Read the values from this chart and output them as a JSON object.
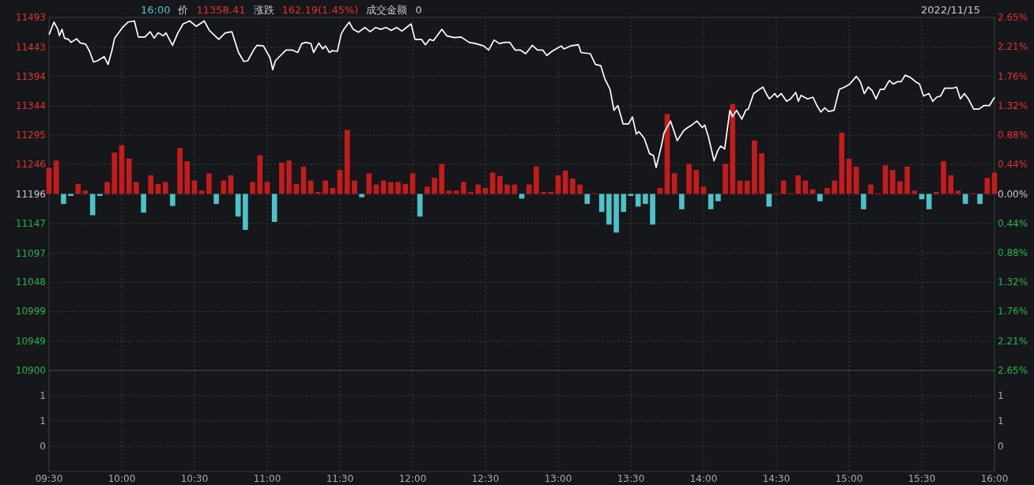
{
  "chart_data": [
    {
      "type": "line",
      "tick_labels": "y",
      "grid": true,
      "annotations": [
        "16:00",
        "价",
        "11358.41",
        "涨跌",
        "162.19(1.45%)",
        "成交金额",
        "0",
        "2022/11/15"
      ],
      "xlim": [
        9.5,
        16
      ],
      "xticks": [
        {
          "value": 10,
          "label": null
        },
        {
          "value": 10.5,
          "label": null
        },
        {
          "value": 11,
          "label": null
        },
        {
          "value": 11.5,
          "label": null
        },
        {
          "value": 12,
          "label": null
        },
        {
          "value": 12.5,
          "label": null
        },
        {
          "value": 13,
          "label": null
        },
        {
          "value": 13.5,
          "label": null
        },
        {
          "value": 14,
          "label": null
        },
        {
          "value": 14.5,
          "label": null
        },
        {
          "value": 15,
          "label": null
        },
        {
          "value": 15.5,
          "label": null
        }
      ],
      "ylim": [
        10900,
        11493
      ],
      "yticks": [
        11493,
        11443,
        11394,
        11344,
        11295,
        11246,
        11196,
        11147,
        11097,
        11048,
        10999,
        10949,
        10900
      ],
      "y2lim": [
        -2.65,
        2.65
      ],
      "y2ticks": [
        {
          "value": 2.65,
          "label": "2.65%"
        },
        {
          "value": 2.21,
          "label": "2.21%"
        },
        {
          "value": 1.76,
          "label": "1.76%"
        },
        {
          "value": 1.32,
          "label": "1.32%"
        },
        {
          "value": 0.88,
          "label": "0.88%"
        },
        {
          "value": 0.44,
          "label": "0.44%"
        },
        {
          "value": 0,
          "label": "0.00%"
        },
        {
          "value": -0.44,
          "label": "0.44%"
        },
        {
          "value": -0.88,
          "label": "0.88%"
        },
        {
          "value": -1.32,
          "label": "1.32%"
        },
        {
          "value": -1.76,
          "label": "1.76%"
        },
        {
          "value": -2.21,
          "label": "2.21%"
        },
        {
          "value": -2.65,
          "label": "2.65%"
        }
      ],
      "series": [
        {
          "type": "line",
          "color": "#ffffff",
          "x": [
            9.502,
            9.534,
            9.561,
            9.571,
            9.589,
            9.607,
            9.634,
            9.652,
            9.689,
            9.716,
            9.752,
            9.779,
            9.806,
            9.833,
            9.879,
            9.906,
            9.933,
            9.951,
            10.005,
            10.042,
            10.087,
            10.114,
            10.159,
            10.196,
            10.223,
            10.25,
            10.286,
            10.304,
            10.349,
            10.386,
            10.422,
            10.467,
            10.513,
            10.567,
            10.603,
            10.667,
            10.712,
            10.757,
            10.803,
            10.839,
            10.866,
            10.911,
            10.929,
            10.974,
            11.02,
            11.038,
            11.056,
            11.092,
            11.129,
            11.174,
            11.21,
            11.238,
            11.265,
            11.301,
            11.319,
            11.355,
            11.382,
            11.401,
            11.428,
            11.446,
            11.482,
            11.509,
            11.527,
            11.564,
            11.591,
            11.627,
            11.672,
            11.708,
            11.745,
            11.781,
            11.817,
            11.853,
            11.89,
            11.926,
            11.989,
            12.016,
            12.061,
            12.088,
            12.116,
            12.143,
            12.201,
            12.234,
            12.288,
            12.333,
            12.388,
            12.433,
            12.488,
            12.523,
            12.56,
            12.596,
            12.632,
            12.668,
            12.705,
            12.741,
            12.777,
            12.822,
            12.859,
            12.895,
            12.922,
            12.958,
            12.985,
            13.022,
            13.04,
            13.085,
            13.14,
            13.158,
            13.221,
            13.257,
            13.293,
            13.321,
            13.357,
            13.384,
            13.411,
            13.447,
            13.484,
            13.511,
            13.538,
            13.556,
            13.592,
            13.629,
            13.656,
            13.674,
            13.71,
            13.728,
            13.773,
            13.819,
            13.864,
            13.891,
            13.918,
            13.955,
            13.991,
            14.009,
            14.036,
            14.072,
            14.099,
            14.118,
            14.145,
            14.181,
            14.199,
            14.227,
            14.263,
            14.29,
            14.308,
            14.344,
            14.371,
            14.408,
            14.435,
            14.453,
            14.489,
            14.507,
            14.534,
            14.571,
            14.598,
            14.634,
            14.652,
            14.67,
            14.716,
            14.752,
            14.779,
            14.806,
            14.833,
            14.86,
            14.897,
            14.933,
            14.969,
            15.005,
            15.051,
            15.078,
            15.105,
            15.132,
            15.159,
            15.186,
            15.214,
            15.241,
            15.277,
            15.304,
            15.332,
            15.359,
            15.386,
            15.422,
            15.458,
            15.485,
            15.512,
            15.549,
            15.576,
            15.603,
            15.63,
            15.658,
            15.712,
            15.739,
            15.766,
            15.793,
            15.821,
            15.857,
            15.893,
            15.929,
            15.966,
            15.993,
            16
          ],
          "values": [
            11465,
            11485,
            11473,
            11462,
            11473,
            11458,
            11456,
            11451,
            11457,
            11450,
            11448,
            11436,
            11418,
            11420,
            11427,
            11414,
            11438,
            11458,
            11476,
            11485,
            11487,
            11460,
            11460,
            11469,
            11458,
            11467,
            11462,
            11467,
            11446,
            11467,
            11482,
            11487,
            11478,
            11487,
            11471,
            11456,
            11467,
            11469,
            11434,
            11419,
            11420,
            11440,
            11446,
            11445,
            11425,
            11405,
            11420,
            11429,
            11438,
            11438,
            11434,
            11449,
            11451,
            11449,
            11434,
            11450,
            11440,
            11445,
            11434,
            11437,
            11436,
            11465,
            11473,
            11485,
            11473,
            11468,
            11476,
            11469,
            11476,
            11473,
            11476,
            11471,
            11476,
            11470,
            11482,
            11456,
            11456,
            11447,
            11456,
            11454,
            11473,
            11462,
            11459,
            11460,
            11451,
            11449,
            11445,
            11438,
            11455,
            11449,
            11451,
            11451,
            11438,
            11438,
            11432,
            11446,
            11438,
            11438,
            11429,
            11436,
            11440,
            11445,
            11440,
            11445,
            11447,
            11434,
            11432,
            11414,
            11412,
            11390,
            11372,
            11337,
            11345,
            11314,
            11314,
            11326,
            11297,
            11301,
            11290,
            11264,
            11261,
            11241,
            11277,
            11299,
            11319,
            11286,
            11303,
            11308,
            11312,
            11319,
            11308,
            11312,
            11290,
            11252,
            11270,
            11277,
            11272,
            11337,
            11326,
            11337,
            11322,
            11337,
            11339,
            11365,
            11370,
            11376,
            11363,
            11356,
            11365,
            11359,
            11365,
            11352,
            11356,
            11367,
            11352,
            11362,
            11356,
            11359,
            11345,
            11334,
            11341,
            11335,
            11337,
            11372,
            11376,
            11381,
            11394,
            11385,
            11365,
            11376,
            11370,
            11356,
            11372,
            11372,
            11387,
            11381,
            11385,
            11385,
            11396,
            11392,
            11385,
            11381,
            11361,
            11365,
            11352,
            11359,
            11361,
            11374,
            11374,
            11376,
            11356,
            11365,
            11356,
            11339,
            11339,
            11345,
            11345,
            11356,
            11358
          ]
        },
        {
          "type": "bar",
          "axis": "y2",
          "x": [
            9.5,
            9.55,
            9.6,
            9.65,
            9.7,
            9.75,
            9.8,
            9.85,
            9.9,
            9.95,
            10,
            10.05,
            10.1,
            10.15,
            10.2,
            10.25,
            10.3,
            10.35,
            10.4,
            10.45,
            10.5,
            10.55,
            10.6,
            10.65,
            10.7,
            10.75,
            10.8,
            10.85,
            10.9,
            10.95,
            11,
            11.05,
            11.1,
            11.15,
            11.2,
            11.25,
            11.3,
            11.35,
            11.4,
            11.45,
            11.5,
            11.55,
            11.6,
            11.65,
            11.7,
            11.75,
            11.8,
            11.85,
            11.9,
            11.95,
            12,
            12.05,
            12.1,
            12.15,
            12.2,
            12.25,
            12.3,
            12.35,
            12.4,
            12.45,
            12.5,
            12.55,
            12.6,
            12.65,
            12.7,
            12.75,
            12.8,
            12.85,
            12.9,
            12.95,
            13,
            13.05,
            13.1,
            13.15,
            13.2,
            13.25,
            13.3,
            13.35,
            13.4,
            13.45,
            13.5,
            13.55,
            13.6,
            13.65,
            13.7,
            13.75,
            13.8,
            13.85,
            13.9,
            13.95,
            14,
            14.05,
            14.1,
            14.15,
            14.2,
            14.25,
            14.3,
            14.35,
            14.4,
            14.45,
            14.5,
            14.55,
            14.6,
            14.65,
            14.7,
            14.75,
            14.8,
            14.85,
            14.9,
            14.95,
            15,
            15.05,
            15.1,
            15.15,
            15.2,
            15.25,
            15.3,
            15.35,
            15.4,
            15.45,
            15.5,
            15.55,
            15.6,
            15.65,
            15.7,
            15.75,
            15.8,
            15.85,
            15.9,
            15.95,
            16
          ],
          "values": [
            0.39,
            0.5,
            -0.15,
            -0.03,
            0.15,
            0.05,
            -0.32,
            -0.03,
            0.18,
            0.62,
            0.73,
            0.53,
            0.18,
            -0.28,
            0.28,
            0.15,
            0.18,
            -0.18,
            0.69,
            0.49,
            0.2,
            0.05,
            0.31,
            -0.15,
            0.2,
            0.28,
            -0.34,
            -0.54,
            0.18,
            0.58,
            0.18,
            -0.42,
            0.47,
            0.5,
            0.15,
            0.41,
            0.2,
            0.03,
            0.2,
            0.09,
            0.36,
            0.96,
            0.2,
            -0.05,
            0.31,
            0.14,
            0.2,
            0.18,
            0.18,
            0.15,
            0.31,
            -0.34,
            0.11,
            0.24,
            0.45,
            0.05,
            0.05,
            0.18,
            0.03,
            0.14,
            0.09,
            0.32,
            0.27,
            0.14,
            0.14,
            -0.07,
            0.14,
            0.41,
            0.03,
            0.03,
            0.28,
            0.35,
            0.23,
            0.14,
            -0.15,
            0.01,
            -0.27,
            -0.46,
            -0.58,
            -0.27,
            -0.03,
            -0.19,
            -0.15,
            -0.46,
            0.09,
            1.2,
            0.31,
            -0.23,
            0.45,
            0.36,
            0.11,
            -0.23,
            -0.11,
            0.45,
            1.35,
            0.2,
            0.2,
            0.8,
            0.61,
            -0.19,
            0.01,
            0.2,
            0.01,
            0.28,
            0.2,
            0.07,
            -0.11,
            0.09,
            0.2,
            0.92,
            0.53,
            0.41,
            -0.23,
            0.14,
            0.01,
            0.43,
            0.36,
            0.19,
            0.41,
            0.05,
            -0.08,
            -0.23,
            0.03,
            0.49,
            0.28,
            0.05,
            -0.15,
            0.01,
            -0.15,
            0.24,
            0.32
          ],
          "colors": [
            "#c41c1c",
            "#c41c1c",
            "#4cc3c8",
            "#4cc3c8",
            "#c41c1c",
            "#c41c1c",
            "#4cc3c8",
            "#4cc3c8",
            "#c41c1c",
            "#c41c1c",
            "#c41c1c",
            "#c41c1c",
            "#c41c1c",
            "#4cc3c8",
            "#c41c1c",
            "#c41c1c",
            "#c41c1c",
            "#4cc3c8",
            "#c41c1c",
            "#c41c1c",
            "#c41c1c",
            "#c41c1c",
            "#c41c1c",
            "#4cc3c8",
            "#c41c1c",
            "#c41c1c",
            "#4cc3c8",
            "#4cc3c8",
            "#c41c1c",
            "#c41c1c",
            "#c41c1c",
            "#4cc3c8",
            "#c41c1c",
            "#c41c1c",
            "#c41c1c",
            "#c41c1c",
            "#c41c1c",
            "#c41c1c",
            "#c41c1c",
            "#c41c1c",
            "#c41c1c",
            "#c41c1c",
            "#c41c1c",
            "#4cc3c8",
            "#c41c1c",
            "#c41c1c",
            "#c41c1c",
            "#c41c1c",
            "#c41c1c",
            "#c41c1c",
            "#c41c1c",
            "#4cc3c8",
            "#c41c1c",
            "#c41c1c",
            "#c41c1c",
            "#c41c1c",
            "#c41c1c",
            "#c41c1c",
            "#c41c1c",
            "#c41c1c",
            "#c41c1c",
            "#c41c1c",
            "#c41c1c",
            "#c41c1c",
            "#c41c1c",
            "#4cc3c8",
            "#c41c1c",
            "#c41c1c",
            "#c41c1c",
            "#c41c1c",
            "#c41c1c",
            "#c41c1c",
            "#c41c1c",
            "#c41c1c",
            "#4cc3c8",
            "#c41c1c",
            "#4cc3c8",
            "#4cc3c8",
            "#4cc3c8",
            "#4cc3c8",
            "#4cc3c8",
            "#4cc3c8",
            "#4cc3c8",
            "#4cc3c8",
            "#c41c1c",
            "#c41c1c",
            "#c41c1c",
            "#4cc3c8",
            "#c41c1c",
            "#c41c1c",
            "#c41c1c",
            "#4cc3c8",
            "#4cc3c8",
            "#c41c1c",
            "#c41c1c",
            "#c41c1c",
            "#c41c1c",
            "#c41c1c",
            "#c41c1c",
            "#4cc3c8",
            "#c41c1c",
            "#c41c1c",
            "#c41c1c",
            "#c41c1c",
            "#c41c1c",
            "#c41c1c",
            "#4cc3c8",
            "#c41c1c",
            "#c41c1c",
            "#c41c1c",
            "#c41c1c",
            "#c41c1c",
            "#4cc3c8",
            "#c41c1c",
            "#c41c1c",
            "#c41c1c",
            "#c41c1c",
            "#c41c1c",
            "#c41c1c",
            "#c41c1c",
            "#4cc3c8",
            "#4cc3c8",
            "#c41c1c",
            "#c41c1c",
            "#c41c1c",
            "#c41c1c",
            "#4cc3c8",
            "#c41c1c",
            "#4cc3c8",
            "#c41c1c",
            "#c41c1c"
          ]
        }
      ]
    },
    {
      "type": "bar",
      "grid": true,
      "xlim": [
        9.5,
        16
      ],
      "xticks": [
        {
          "value": 9.5,
          "label": "09:30"
        },
        {
          "value": 10,
          "label": "10:00"
        },
        {
          "value": 10.5,
          "label": "10:30"
        },
        {
          "value": 11,
          "label": "11:00"
        },
        {
          "value": 11.5,
          "label": "11:30"
        },
        {
          "value": 12,
          "label": "12:00"
        },
        {
          "value": 12.5,
          "label": "12:30"
        },
        {
          "value": 13,
          "label": "13:00"
        },
        {
          "value": 13.5,
          "label": "13:30"
        },
        {
          "value": 14,
          "label": "14:00"
        },
        {
          "value": 14.5,
          "label": "14:30"
        },
        {
          "value": 15,
          "label": "15:00"
        },
        {
          "value": 15.5,
          "label": "15:30"
        },
        {
          "value": 16,
          "label": "16:00"
        }
      ],
      "ylim": [
        -0.6,
        1.8
      ],
      "yticks": [
        {
          "value": 1.2,
          "label": "1"
        },
        {
          "value": 0.6,
          "label": "1"
        },
        0
      ],
      "y2lim": [
        -0.6,
        1.8
      ],
      "y2ticks": [
        {
          "value": 1.2,
          "label": "1"
        },
        {
          "value": 0.6,
          "label": "1"
        },
        0
      ]
    }
  ]
}
